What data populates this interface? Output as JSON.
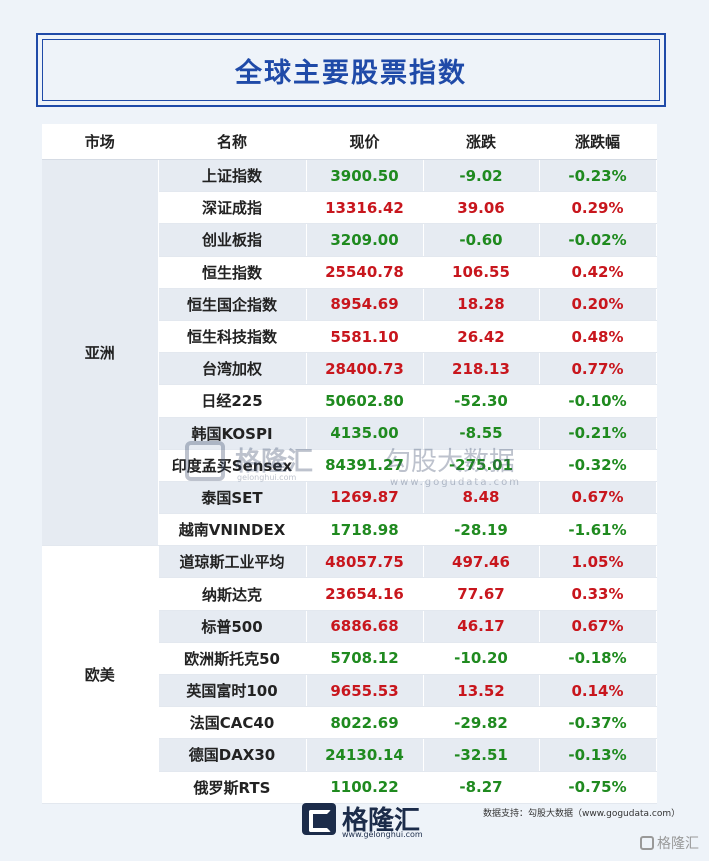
{
  "title": "全球主要股票指数",
  "columns": [
    "市场",
    "名称",
    "现价",
    "涨跌",
    "涨跌幅"
  ],
  "colors": {
    "up": "#c8161d",
    "down": "#1f8a1f",
    "brand": "#1f4aa8"
  },
  "regions": [
    {
      "name": "亚洲",
      "rows": [
        {
          "name": "上证指数",
          "price": "3900.50",
          "change": "-9.02",
          "pct": "-0.23%",
          "dir": "down"
        },
        {
          "name": "深证成指",
          "price": "13316.42",
          "change": "39.06",
          "pct": "0.29%",
          "dir": "up"
        },
        {
          "name": "创业板指",
          "price": "3209.00",
          "change": "-0.60",
          "pct": "-0.02%",
          "dir": "down"
        },
        {
          "name": "恒生指数",
          "price": "25540.78",
          "change": "106.55",
          "pct": "0.42%",
          "dir": "up"
        },
        {
          "name": "恒生国企指数",
          "price": "8954.69",
          "change": "18.28",
          "pct": "0.20%",
          "dir": "up"
        },
        {
          "name": "恒生科技指数",
          "price": "5581.10",
          "change": "26.42",
          "pct": "0.48%",
          "dir": "up"
        },
        {
          "name": "台湾加权",
          "price": "28400.73",
          "change": "218.13",
          "pct": "0.77%",
          "dir": "up"
        },
        {
          "name": "日经225",
          "price": "50602.80",
          "change": "-52.30",
          "pct": "-0.10%",
          "dir": "down"
        },
        {
          "name": "韩国KOSPI",
          "price": "4135.00",
          "change": "-8.55",
          "pct": "-0.21%",
          "dir": "down"
        },
        {
          "name": "印度孟买Sensex",
          "price": "84391.27",
          "change": "-275.01",
          "pct": "-0.32%",
          "dir": "down"
        },
        {
          "name": "泰国SET",
          "price": "1269.87",
          "change": "8.48",
          "pct": "0.67%",
          "dir": "up"
        },
        {
          "name": "越南VNINDEX",
          "price": "1718.98",
          "change": "-28.19",
          "pct": "-1.61%",
          "dir": "down"
        }
      ]
    },
    {
      "name": "欧美",
      "rows": [
        {
          "name": "道琼斯工业平均",
          "price": "48057.75",
          "change": "497.46",
          "pct": "1.05%",
          "dir": "up"
        },
        {
          "name": "纳斯达克",
          "price": "23654.16",
          "change": "77.67",
          "pct": "0.33%",
          "dir": "up"
        },
        {
          "name": "标普500",
          "price": "6886.68",
          "change": "46.17",
          "pct": "0.67%",
          "dir": "up"
        },
        {
          "name": "欧洲斯托克50",
          "price": "5708.12",
          "change": "-10.20",
          "pct": "-0.18%",
          "dir": "down"
        },
        {
          "name": "英国富时100",
          "price": "9655.53",
          "change": "13.52",
          "pct": "0.14%",
          "dir": "up"
        },
        {
          "name": "法国CAC40",
          "price": "8022.69",
          "change": "-29.82",
          "pct": "-0.37%",
          "dir": "down"
        },
        {
          "name": "德国DAX30",
          "price": "24130.14",
          "change": "-32.51",
          "pct": "-0.13%",
          "dir": "down"
        },
        {
          "name": "俄罗斯RTS",
          "price": "1100.22",
          "change": "-8.27",
          "pct": "-0.75%",
          "dir": "down"
        }
      ]
    }
  ],
  "watermark": {
    "brand": "格隆汇",
    "brand_url": "gelonghui.com",
    "data": "勾股大数据",
    "data_url": "www.gogudata.com"
  },
  "footer": {
    "brand": "格隆汇",
    "brand_url": "www.gelonghui.com",
    "source": "数据支持：勾股大数据（www.gogudata.com）",
    "corner": "格隆汇"
  }
}
